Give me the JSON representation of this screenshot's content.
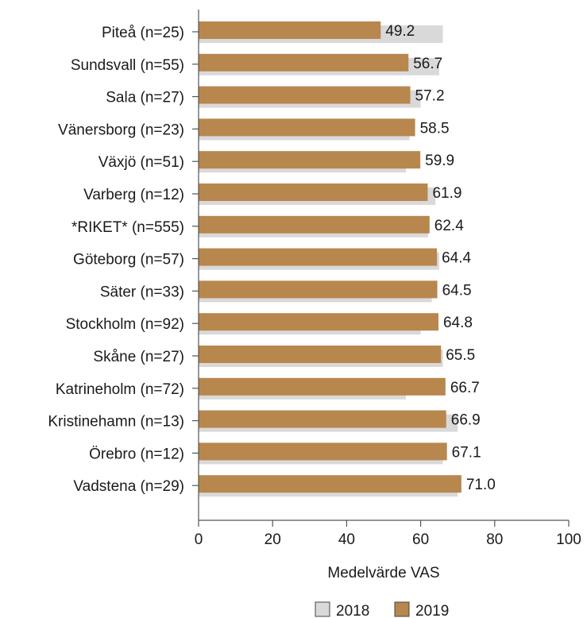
{
  "chart_data": {
    "type": "bar",
    "orientation": "horizontal",
    "categories": [
      "Piteå (n=25)",
      "Sundsvall (n=55)",
      "Sala (n=27)",
      "Vänersborg (n=23)",
      "Växjö (n=51)",
      "Varberg (n=12)",
      "*RIKET* (n=555)",
      "Göteborg (n=57)",
      "Säter (n=33)",
      "Stockholm (n=92)",
      "Skåne (n=27)",
      "Katrineholm (n=72)",
      "Kristinehamn (n=13)",
      "Örebro (n=12)",
      "Vadstena (n=29)"
    ],
    "series": [
      {
        "name": "2018",
        "color": "#d9d9d9",
        "values": [
          66,
          65,
          60,
          57,
          56,
          64,
          62,
          65,
          63,
          60,
          66,
          56,
          70,
          66,
          70
        ]
      },
      {
        "name": "2019",
        "color": "#b8874e",
        "values": [
          49.2,
          56.7,
          57.2,
          58.5,
          59.9,
          61.9,
          62.4,
          64.4,
          64.5,
          64.8,
          65.5,
          66.7,
          66.9,
          67.1,
          71.0
        ]
      }
    ],
    "data_labels": [
      "49.2",
      "56.7",
      "57.2",
      "58.5",
      "59.9",
      "61.9",
      "62.4",
      "64.4",
      "64.5",
      "64.8",
      "65.5",
      "66.7",
      "66.9",
      "67.1",
      "71.0"
    ],
    "xlabel": "Medelvärde VAS",
    "ylabel": "",
    "xlim": [
      0,
      100
    ],
    "xticks": [
      "0",
      "20",
      "40",
      "60",
      "80",
      "100"
    ],
    "grid": false,
    "legend": "bottom-right"
  }
}
